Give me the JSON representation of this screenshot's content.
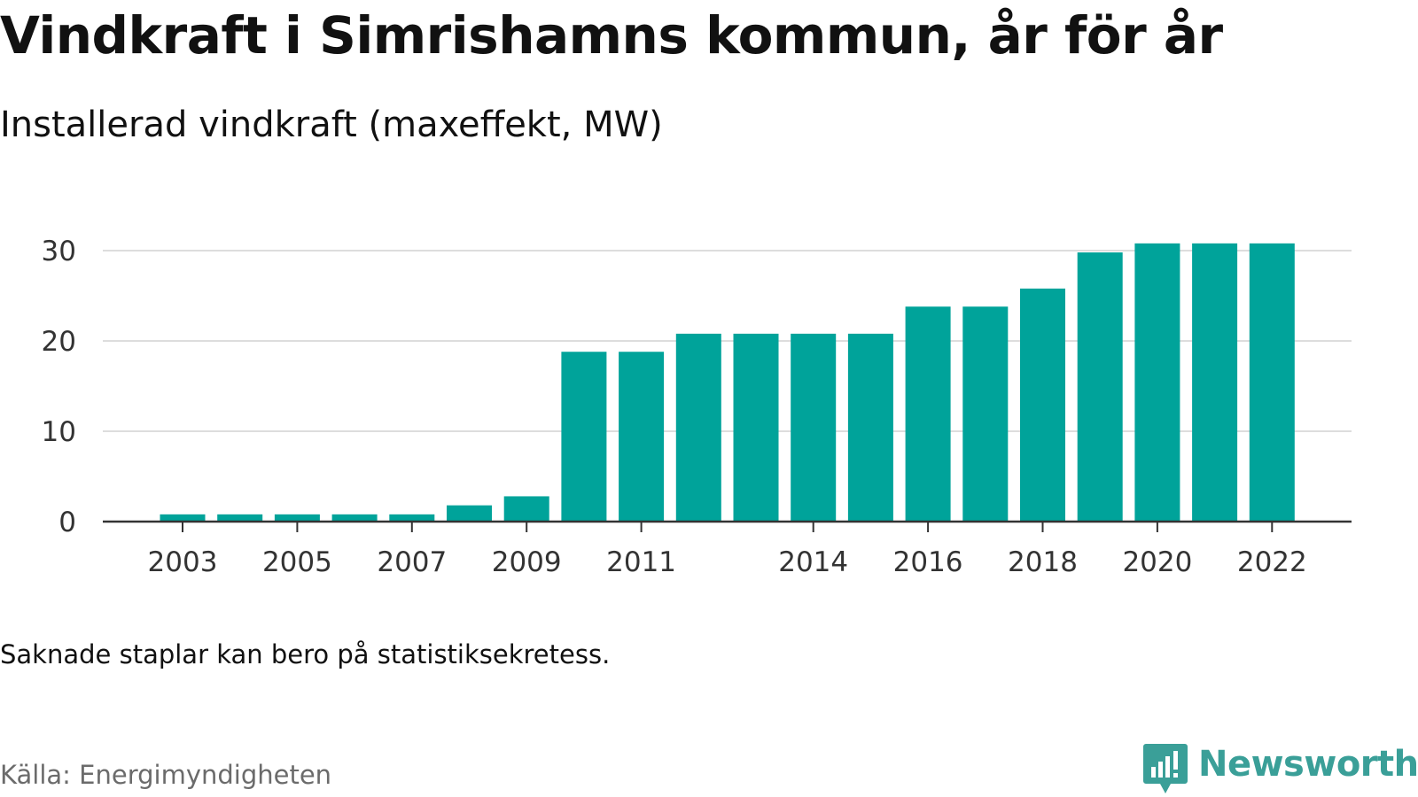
{
  "header": {
    "title": "Vindkraft i Simrishamns kommun, år för år",
    "subtitle": "Installerad vindkraft (maxeffekt, MW)"
  },
  "footer": {
    "note": "Saknade staplar kan bero på statistiksekretess.",
    "source": "Källa: Energimyndigheten",
    "brand": "Newsworthy",
    "brand_icon": "newsworthy-logo-icon"
  },
  "colors": {
    "bar": "#00a39a",
    "grid": "#dddddd",
    "axis": "#333333",
    "brand": "#3a9f98"
  },
  "chart_data": {
    "type": "bar",
    "title": "Vindkraft i Simrishamns kommun, år för år",
    "subtitle": "Installerad vindkraft (maxeffekt, MW)",
    "xlabel": "",
    "ylabel": "",
    "categories": [
      2003,
      2004,
      2005,
      2006,
      2007,
      2008,
      2009,
      2010,
      2011,
      2012,
      2013,
      2014,
      2015,
      2016,
      2017,
      2018,
      2019,
      2020,
      2021,
      2022
    ],
    "values": [
      0.8,
      0.8,
      0.8,
      0.8,
      0.8,
      1.8,
      2.8,
      18.8,
      18.8,
      20.8,
      20.8,
      20.8,
      20.8,
      23.8,
      23.8,
      25.8,
      29.8,
      30.8,
      30.8,
      30.8
    ],
    "x_tick_labels": [
      "2003",
      "2005",
      "2007",
      "2009",
      "2011",
      "2014",
      "2016",
      "2018",
      "2020",
      "2022"
    ],
    "x_tick_values": [
      2003,
      2005,
      2007,
      2009,
      2011,
      2014,
      2016,
      2018,
      2020,
      2022
    ],
    "y_ticks": [
      0,
      10,
      20,
      30
    ],
    "ylim": [
      0,
      30.8
    ],
    "grid": true,
    "legend": "none"
  }
}
